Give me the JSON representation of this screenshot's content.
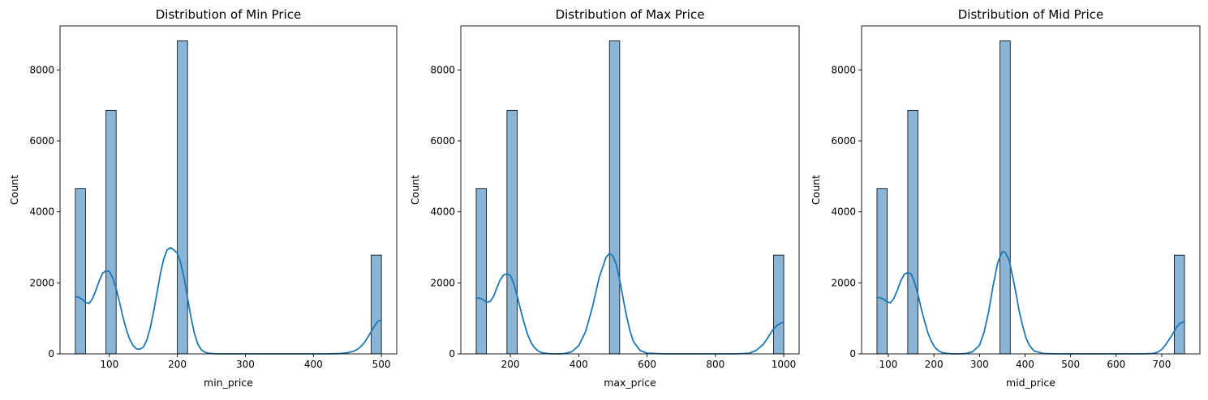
{
  "chart_data": [
    {
      "type": "bar",
      "title": "Distribution of Min Price",
      "xlabel": "min_price",
      "ylabel": "Count",
      "xlim": [
        27.5,
        522.5
      ],
      "ylim": [
        0,
        9240
      ],
      "xticks": [
        100,
        200,
        300,
        400,
        500
      ],
      "yticks": [
        0,
        2000,
        4000,
        6000,
        8000
      ],
      "bars": [
        {
          "x0": 50,
          "x1": 65,
          "count": 4660
        },
        {
          "x0": 95,
          "x1": 110,
          "count": 6860
        },
        {
          "x0": 200,
          "x1": 215,
          "count": 8820
        },
        {
          "x0": 485,
          "x1": 500,
          "count": 2780
        }
      ],
      "kde": {
        "x": [
          50,
          55,
          60,
          65,
          70,
          75,
          80,
          85,
          90,
          95,
          100,
          105,
          110,
          115,
          120,
          125,
          130,
          135,
          140,
          145,
          150,
          155,
          160,
          165,
          170,
          175,
          180,
          185,
          190,
          195,
          200,
          205,
          210,
          215,
          220,
          225,
          230,
          235,
          240,
          245,
          250,
          260,
          270,
          280,
          300,
          350,
          400,
          420,
          440,
          450,
          460,
          465,
          470,
          475,
          480,
          485,
          490,
          495,
          500
        ],
        "y": [
          1620,
          1590,
          1540,
          1450,
          1420,
          1540,
          1780,
          2050,
          2270,
          2340,
          2320,
          2140,
          1840,
          1450,
          1040,
          680,
          410,
          230,
          140,
          130,
          190,
          380,
          720,
          1180,
          1710,
          2250,
          2680,
          2930,
          2990,
          2930,
          2830,
          2560,
          2130,
          1580,
          1030,
          580,
          280,
          120,
          50,
          20,
          10,
          0,
          0,
          0,
          0,
          0,
          0,
          0,
          10,
          30,
          80,
          130,
          210,
          320,
          470,
          630,
          790,
          920,
          950
        ]
      },
      "bar_color": "#8bb5d6",
      "line_color": "#1f77b4"
    },
    {
      "type": "bar",
      "title": "Distribution of Max Price",
      "xlabel": "max_price",
      "ylabel": "Count",
      "xlim": [
        55,
        1045
      ],
      "ylim": [
        0,
        9240
      ],
      "xticks": [
        200,
        400,
        600,
        800,
        1000
      ],
      "yticks": [
        0,
        2000,
        4000,
        6000,
        8000
      ],
      "bars": [
        {
          "x0": 100,
          "x1": 130,
          "count": 4660
        },
        {
          "x0": 190,
          "x1": 220,
          "count": 6860
        },
        {
          "x0": 490,
          "x1": 520,
          "count": 8820
        },
        {
          "x0": 970,
          "x1": 1000,
          "count": 2780
        }
      ],
      "kde": {
        "x": [
          100,
          110,
          120,
          130,
          140,
          150,
          160,
          170,
          180,
          190,
          200,
          210,
          220,
          230,
          240,
          250,
          260,
          270,
          280,
          290,
          300,
          320,
          340,
          360,
          380,
          400,
          420,
          440,
          460,
          480,
          490,
          500,
          510,
          520,
          530,
          540,
          550,
          560,
          580,
          600,
          650,
          700,
          800,
          860,
          900,
          920,
          940,
          950,
          960,
          970,
          980,
          990,
          1000
        ],
        "y": [
          1570,
          1570,
          1530,
          1460,
          1470,
          1600,
          1850,
          2080,
          2220,
          2260,
          2210,
          1980,
          1630,
          1240,
          880,
          560,
          330,
          180,
          90,
          40,
          20,
          0,
          0,
          10,
          60,
          230,
          620,
          1310,
          2150,
          2720,
          2830,
          2760,
          2520,
          2080,
          1560,
          1060,
          650,
          350,
          90,
          20,
          0,
          0,
          0,
          0,
          20,
          100,
          270,
          400,
          560,
          700,
          800,
          860,
          900
        ]
      },
      "bar_color": "#8bb5d6",
      "line_color": "#1f77b4"
    },
    {
      "type": "bar",
      "title": "Distribution of Mid Price",
      "xlabel": "mid_price",
      "ylabel": "Count",
      "xlim": [
        41.25,
        783.75
      ],
      "ylim": [
        0,
        9240
      ],
      "xticks": [
        100,
        200,
        300,
        400,
        500,
        600,
        700
      ],
      "yticks": [
        0,
        2000,
        4000,
        6000,
        8000
      ],
      "bars": [
        {
          "x0": 75,
          "x1": 97.5,
          "count": 4660
        },
        {
          "x0": 142.5,
          "x1": 165,
          "count": 6860
        },
        {
          "x0": 345,
          "x1": 367.5,
          "count": 8820
        },
        {
          "x0": 727.5,
          "x1": 750,
          "count": 2780
        }
      ],
      "kde": {
        "x": [
          75,
          82,
          90,
          97,
          105,
          112,
          120,
          127,
          135,
          142,
          150,
          157,
          165,
          172,
          180,
          187,
          195,
          202,
          210,
          217,
          225,
          240,
          255,
          270,
          285,
          300,
          310,
          320,
          330,
          340,
          350,
          357,
          365,
          372,
          380,
          387,
          395,
          402,
          410,
          420,
          440,
          470,
          530,
          650,
          680,
          690,
          700,
          710,
          717,
          725,
          732,
          740,
          750
        ],
        "y": [
          1590,
          1580,
          1540,
          1460,
          1440,
          1560,
          1800,
          2050,
          2240,
          2290,
          2250,
          2030,
          1680,
          1280,
          900,
          580,
          340,
          180,
          90,
          40,
          20,
          0,
          0,
          10,
          60,
          240,
          600,
          1180,
          1930,
          2560,
          2880,
          2850,
          2640,
          2230,
          1720,
          1210,
          780,
          450,
          230,
          80,
          10,
          0,
          0,
          0,
          10,
          40,
          120,
          280,
          420,
          580,
          740,
          860,
          910
        ]
      },
      "bar_color": "#8bb5d6",
      "line_color": "#1f77b4"
    }
  ]
}
